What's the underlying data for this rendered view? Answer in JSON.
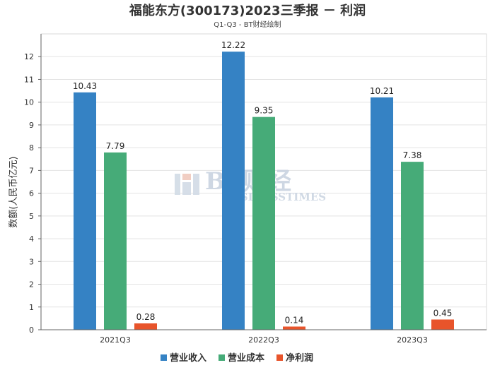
{
  "chart_data": {
    "type": "bar",
    "title": "福能东方(300173)2023三季报 － 利润",
    "subtitle": "Q1-Q3 - BT财经绘制",
    "ylabel": "数额(人民币亿元)",
    "xlabel": "",
    "ylim": [
      0,
      13
    ],
    "yticks": [
      0,
      1,
      2,
      3,
      4,
      5,
      6,
      7,
      8,
      9,
      10,
      11,
      12
    ],
    "grid": true,
    "legend_position": "bottom",
    "categories": [
      "2021Q3",
      "2022Q3",
      "2023Q3"
    ],
    "series": [
      {
        "name": "营业收入",
        "color": "#3582c4",
        "values": [
          10.43,
          12.22,
          10.21
        ],
        "labels": [
          "10.43",
          "12.22",
          "10.21"
        ]
      },
      {
        "name": "营业成本",
        "color": "#46ab78",
        "values": [
          7.79,
          9.35,
          7.38
        ],
        "labels": [
          "7.79",
          "9.35",
          "7.38"
        ]
      },
      {
        "name": "净利润",
        "color": "#e8542b",
        "values": [
          0.28,
          0.14,
          0.45
        ],
        "labels": [
          "0.28",
          "0.14",
          "0.45"
        ]
      }
    ],
    "watermark": {
      "main": "BT财经",
      "sub": "BUSINESSTIMES"
    }
  }
}
